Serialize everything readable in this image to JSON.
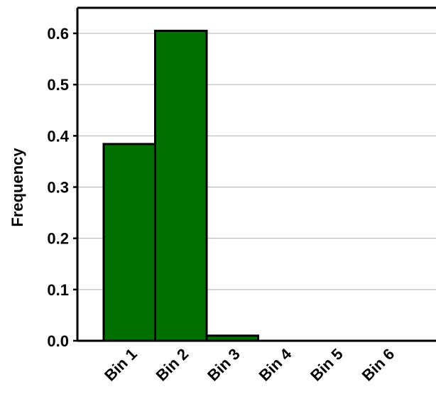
{
  "chart_data": {
    "type": "bar",
    "title": "",
    "xlabel": "",
    "ylabel": "Frequency",
    "categories": [
      "Bin 1",
      "Bin 2",
      "Bin 3",
      "Bin 4",
      "Bin 5",
      "Bin 6"
    ],
    "values": [
      0.384,
      0.605,
      0.01,
      0.0,
      0.0,
      0.0
    ],
    "ylim": [
      0,
      0.65
    ],
    "yticks": [
      "0.0",
      "0.1",
      "0.2",
      "0.3",
      "0.4",
      "0.5",
      "0.6"
    ],
    "grid": true,
    "legend": "none",
    "bar_color": "#007000",
    "bar_edge_color": "#000000"
  }
}
